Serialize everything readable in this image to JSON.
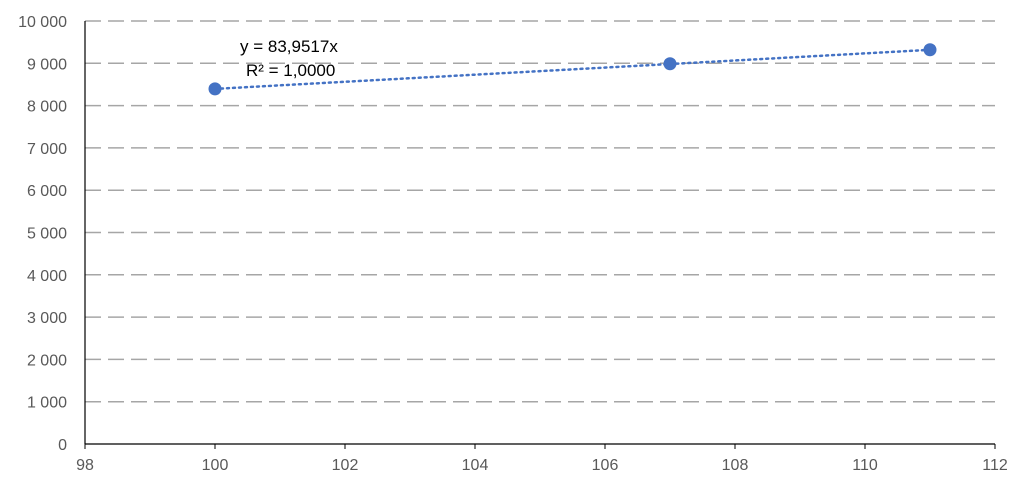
{
  "chart_data": {
    "type": "scatter",
    "x": [
      100,
      107,
      111
    ],
    "y": [
      8395,
      8990,
      9320
    ],
    "xlim": [
      98,
      112
    ],
    "ylim": [
      0,
      10000
    ],
    "x_ticks": [
      98,
      100,
      102,
      104,
      106,
      108,
      110,
      112
    ],
    "x_tick_labels": [
      "98",
      "100",
      "102",
      "104",
      "106",
      "108",
      "110",
      "112"
    ],
    "y_ticks": [
      0,
      1000,
      2000,
      3000,
      4000,
      5000,
      6000,
      7000,
      8000,
      9000,
      10000
    ],
    "y_tick_labels": [
      "0",
      "1 000",
      "2 000",
      "3 000",
      "4 000",
      "5 000",
      "6 000",
      "7 000",
      "8 000",
      "9 000",
      "10 000"
    ],
    "grid": "horizontal dashed",
    "trendline": {
      "type": "linear",
      "slope": 83.9517,
      "x_range": [
        100,
        111
      ],
      "equation_label": "y = 83,9517x",
      "r2_label": "R² = 1,0000"
    },
    "colors": {
      "marker": "#4472C4",
      "trendline": "#4472C4",
      "grid": "#A6A6A6",
      "axis": "#000000"
    }
  }
}
